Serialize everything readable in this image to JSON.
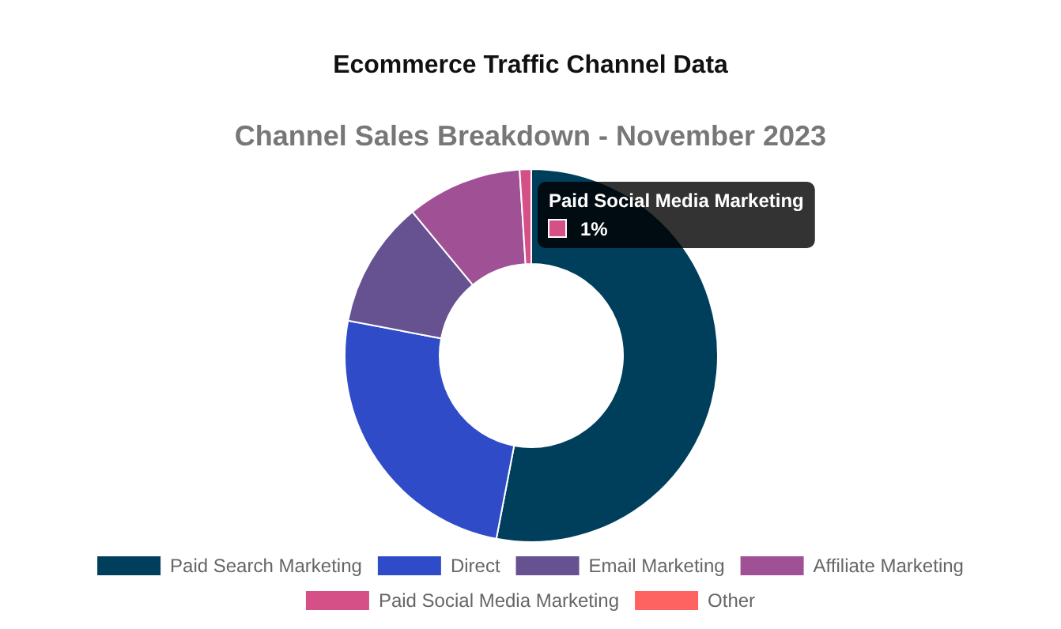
{
  "chart_data": {
    "type": "donut",
    "title": "Ecommerce Traffic Channel Data",
    "subtitle": "Channel Sales Breakdown - November 2023",
    "categories": [
      "Paid Search Marketing",
      "Direct",
      "Email Marketing",
      "Affiliate Marketing",
      "Paid Social Media Marketing",
      "Other"
    ],
    "values": [
      53,
      25,
      11,
      10,
      1,
      0
    ],
    "colors": [
      "#003f5c",
      "#2f4bc8",
      "#665191",
      "#a05195",
      "#d45087",
      "#ff6361"
    ],
    "legend": "bottom",
    "annotations": [
      "Paid Social Media Marketing",
      "1%"
    ]
  }
}
